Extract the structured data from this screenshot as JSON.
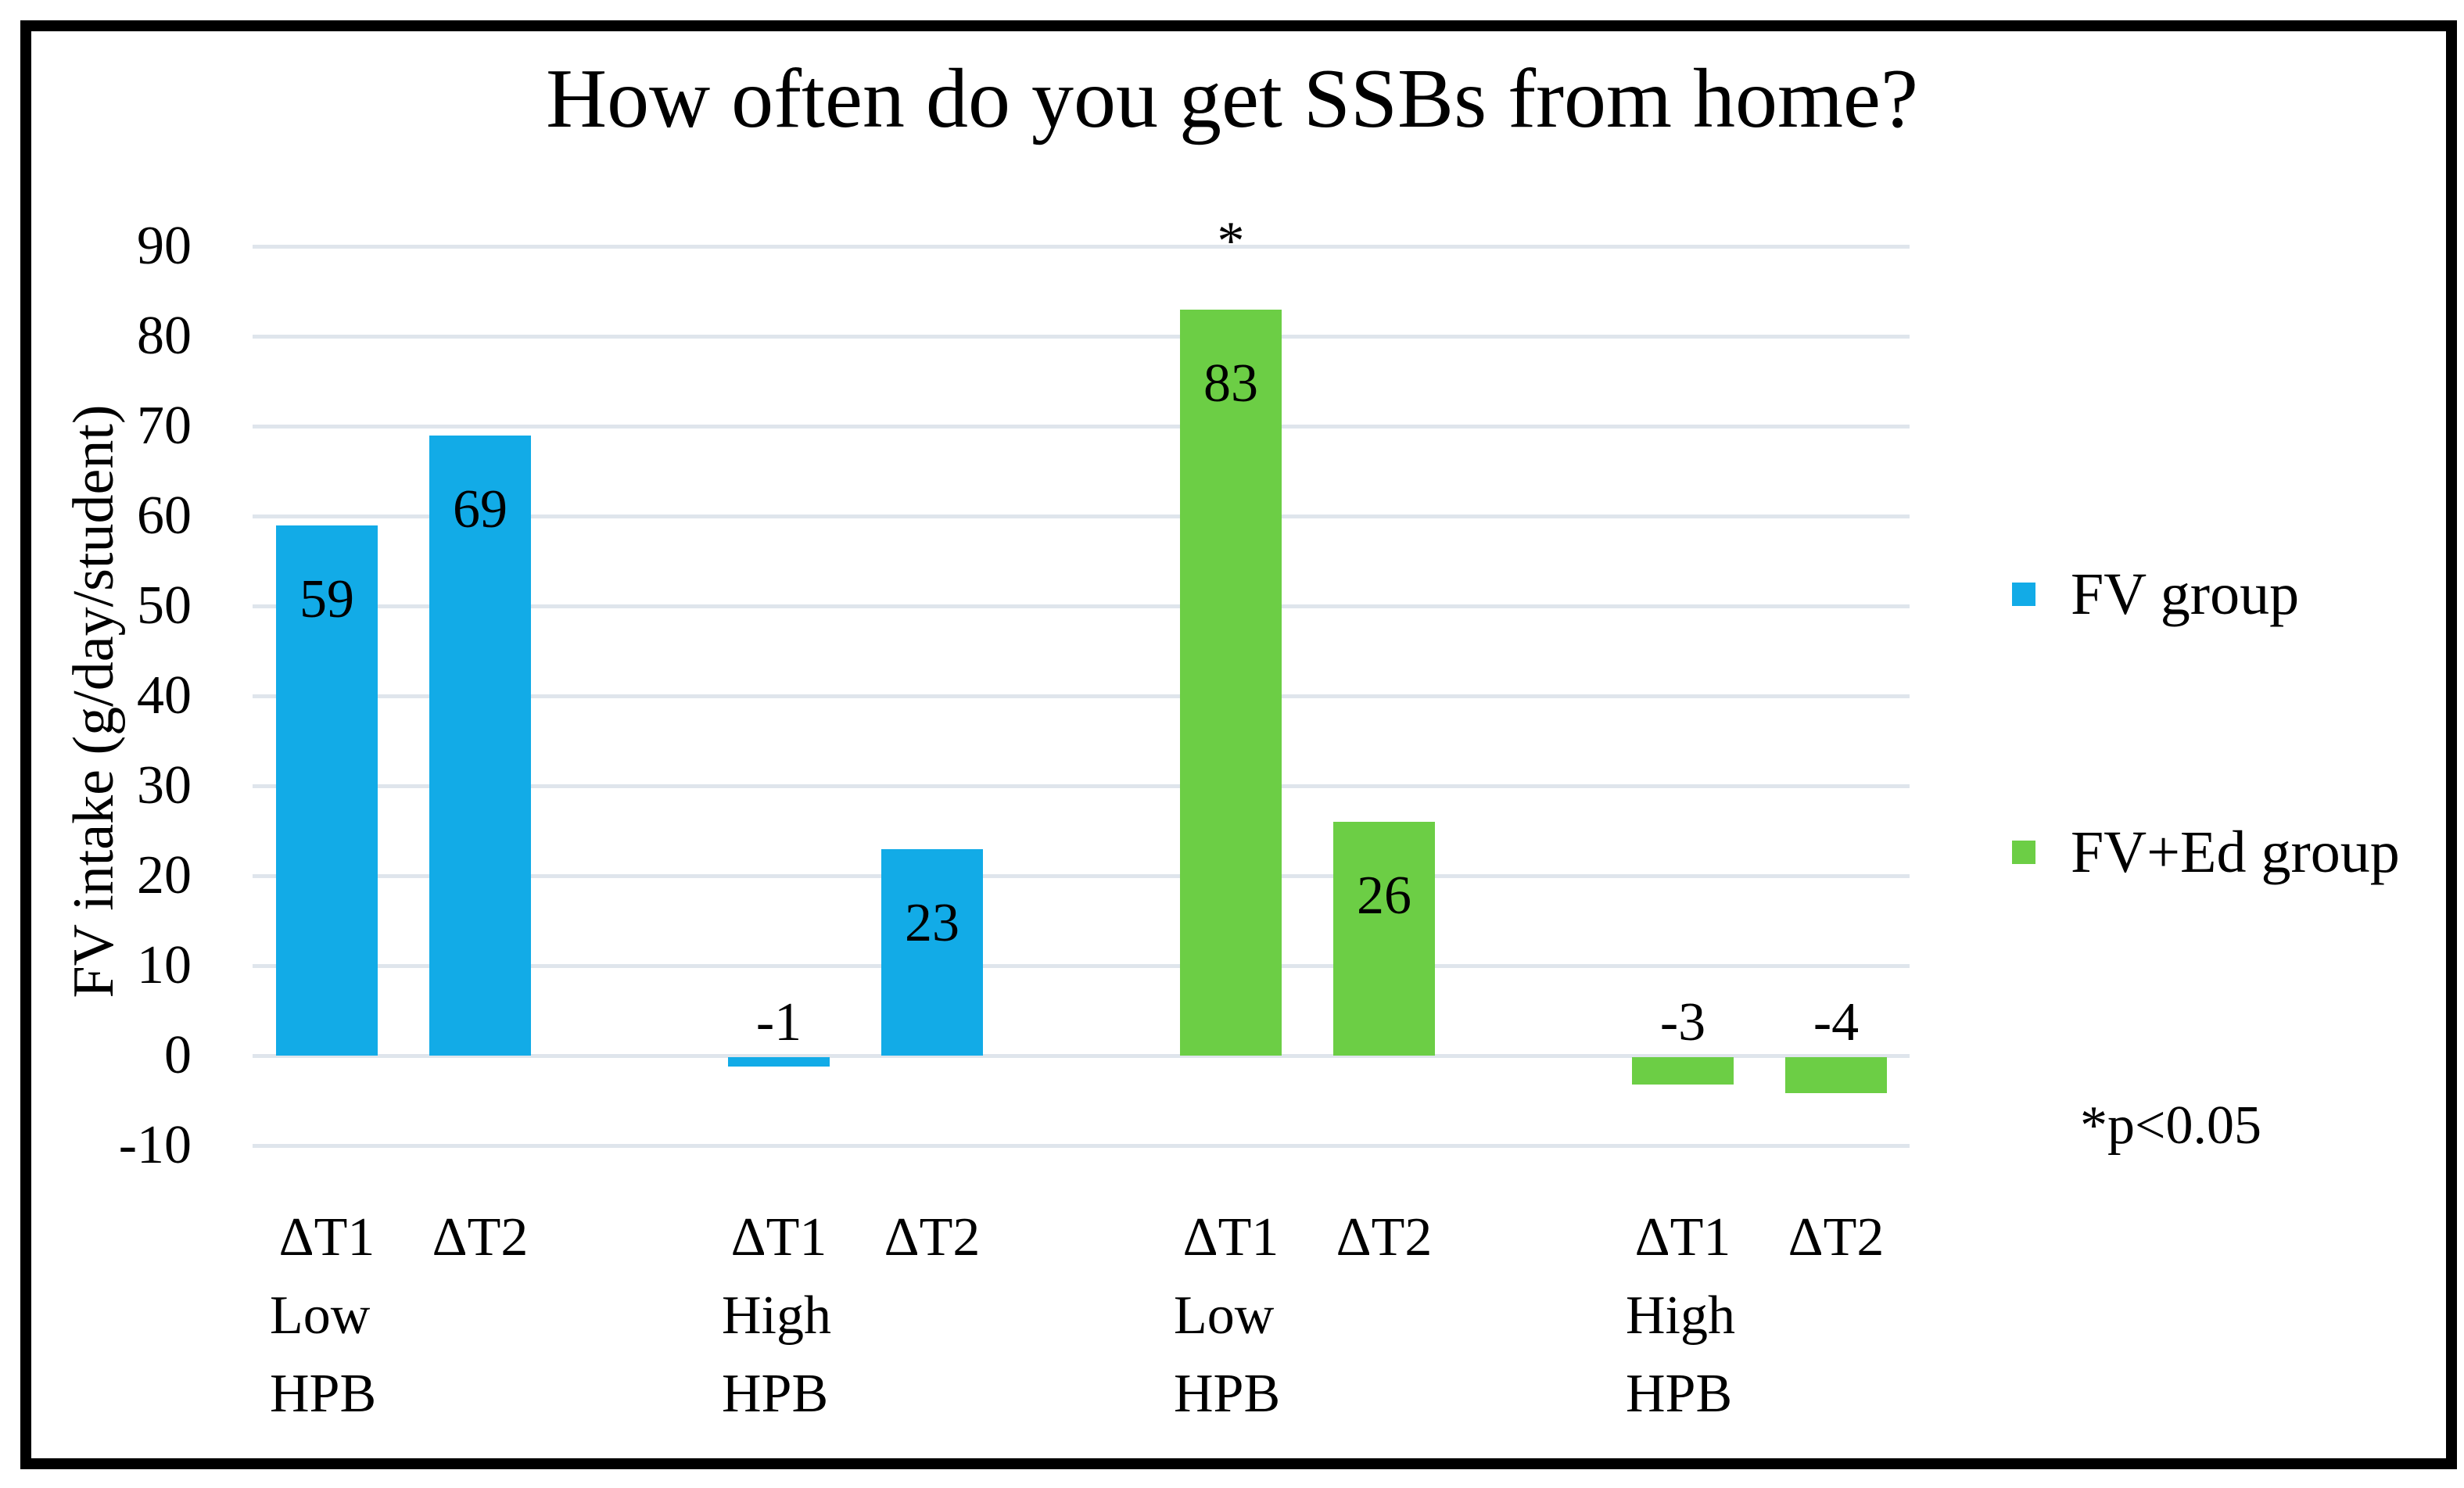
{
  "colors": {
    "fv_group": "#12ABE7",
    "fv_ed_group": "#6CCE45",
    "gridline": "#DFE5EC",
    "border": "#000000"
  },
  "legend": {
    "items": [
      {
        "label": "FV group",
        "color_key": "fv_group"
      },
      {
        "label": "FV+Ed group",
        "color_key": "fv_ed_group"
      }
    ]
  },
  "footnote": "*p<0.05",
  "chart_data": {
    "type": "bar",
    "title": "How often do you get SSBs from home?",
    "ylabel": "FV intake (g/day/student)",
    "xlabel": "",
    "ylim": [
      -10,
      90
    ],
    "ytick_step": 10,
    "yticks": [
      90,
      80,
      70,
      60,
      50,
      40,
      30,
      20,
      10,
      0,
      -10
    ],
    "grid": true,
    "legend_position": "right",
    "groups": [
      {
        "series": "FV group",
        "color_key": "fv_group",
        "condition_lines": [
          "Low",
          "HPB"
        ],
        "bars": [
          {
            "label": "ΔT1",
            "value": 59
          },
          {
            "label": "ΔT2",
            "value": 69
          }
        ]
      },
      {
        "series": "FV group",
        "color_key": "fv_group",
        "condition_lines": [
          "High",
          "HPB"
        ],
        "bars": [
          {
            "label": "ΔT1",
            "value": -1
          },
          {
            "label": "ΔT2",
            "value": 23
          }
        ]
      },
      {
        "series": "FV+Ed group",
        "color_key": "fv_ed_group",
        "condition_lines": [
          "Low",
          "HPB"
        ],
        "bars": [
          {
            "label": "ΔT1",
            "value": 83,
            "annotation": "*"
          },
          {
            "label": "ΔT2",
            "value": 26
          }
        ]
      },
      {
        "series": "FV+Ed group",
        "color_key": "fv_ed_group",
        "condition_lines": [
          "High",
          "HPB"
        ],
        "bars": [
          {
            "label": "ΔT1",
            "value": -3
          },
          {
            "label": "ΔT2",
            "value": -4
          }
        ]
      }
    ]
  }
}
